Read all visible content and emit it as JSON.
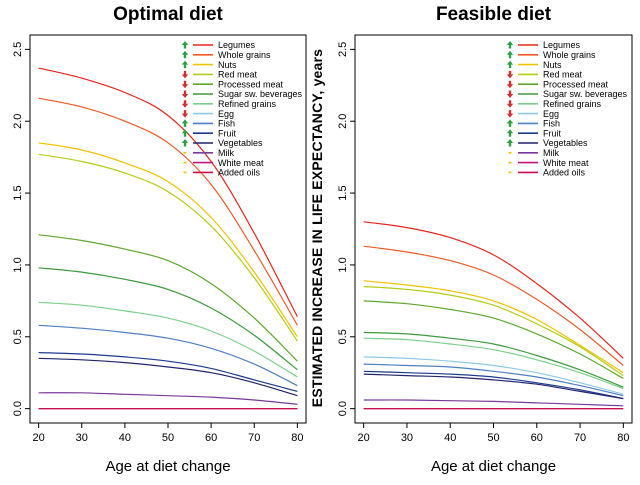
{
  "figure": {
    "shared_ylabel": "ESTIMATED INCREASE IN LIFE EXPECTANCY, years"
  },
  "chart_data": [
    {
      "type": "line",
      "title": "Optimal diet",
      "xlabel": "Age at diet change",
      "ylabel": "",
      "xlim": [
        18,
        82
      ],
      "ylim": [
        -0.1,
        2.6
      ],
      "x": [
        20,
        30,
        40,
        50,
        60,
        70,
        80
      ],
      "xticks": [
        20,
        30,
        40,
        50,
        60,
        70,
        80
      ],
      "yticks": [
        0.0,
        0.5,
        1.0,
        1.5,
        2.0,
        2.5
      ],
      "ytick_labels": [
        "0.0",
        "0.5",
        "1.0",
        "1.5",
        "2.0",
        "2.5"
      ],
      "series": [
        {
          "name": "Legumes",
          "color": "#e8251d",
          "arrow": "up",
          "arrow_color": "#2ea043",
          "values": [
            2.37,
            2.3,
            2.2,
            2.04,
            1.72,
            1.22,
            0.64
          ]
        },
        {
          "name": "Whole grains",
          "color": "#f05a28",
          "arrow": "up",
          "arrow_color": "#2ea043",
          "values": [
            2.16,
            2.1,
            2.0,
            1.85,
            1.56,
            1.1,
            0.58
          ]
        },
        {
          "name": "Nuts",
          "color": "#f2c200",
          "arrow": "up",
          "arrow_color": "#2ea043",
          "values": [
            1.85,
            1.8,
            1.71,
            1.58,
            1.33,
            0.95,
            0.5
          ]
        },
        {
          "name": "Red meat",
          "color": "#b5cc18",
          "arrow": "down",
          "arrow_color": "#d32f2f",
          "values": [
            1.77,
            1.72,
            1.64,
            1.51,
            1.27,
            0.91,
            0.47
          ]
        },
        {
          "name": "Processed meat",
          "color": "#5fa82d",
          "arrow": "down",
          "arrow_color": "#d32f2f",
          "values": [
            1.21,
            1.17,
            1.11,
            1.03,
            0.87,
            0.63,
            0.33
          ]
        },
        {
          "name": "Sugar  sw. beverages",
          "color": "#3d9a3d",
          "arrow": "down",
          "arrow_color": "#d32f2f",
          "values": [
            0.98,
            0.95,
            0.9,
            0.83,
            0.7,
            0.51,
            0.27
          ]
        },
        {
          "name": "Refined grains",
          "color": "#7ccf8a",
          "arrow": "down",
          "arrow_color": "#d32f2f",
          "values": [
            0.74,
            0.72,
            0.68,
            0.63,
            0.54,
            0.4,
            0.22
          ]
        },
        {
          "name": "Egg",
          "color": "#8ec9e6",
          "arrow": "down",
          "arrow_color": "#d32f2f",
          "values": [
            0.0,
            0.0,
            0.0,
            0.0,
            0.0,
            0.0,
            0.0
          ]
        },
        {
          "name": "Fish",
          "color": "#4f7fc4",
          "arrow": "up",
          "arrow_color": "#2ea043",
          "values": [
            0.58,
            0.56,
            0.53,
            0.49,
            0.42,
            0.31,
            0.16
          ]
        },
        {
          "name": "Fruit",
          "color": "#1c3a8f",
          "arrow": "up",
          "arrow_color": "#2ea043",
          "values": [
            0.39,
            0.38,
            0.36,
            0.33,
            0.28,
            0.2,
            0.12
          ]
        },
        {
          "name": "Vegetables",
          "color": "#22246e",
          "arrow": "up",
          "arrow_color": "#2ea043",
          "values": [
            0.35,
            0.34,
            0.32,
            0.29,
            0.25,
            0.18,
            0.09
          ]
        },
        {
          "name": "Milk",
          "color": "#7a3a9a",
          "arrow": "none",
          "arrow_color": "#f2c200",
          "values": [
            0.11,
            0.11,
            0.1,
            0.09,
            0.08,
            0.06,
            0.03
          ]
        },
        {
          "name": "White meat",
          "color": "#c0157f",
          "arrow": "none",
          "arrow_color": "#f2c200",
          "values": [
            0.0,
            0.0,
            0.0,
            0.0,
            0.0,
            0.0,
            0.0
          ]
        },
        {
          "name": "Added oils",
          "color": "#c8104a",
          "arrow": "none",
          "arrow_color": "#f2c200",
          "values": [
            0.0,
            0.0,
            0.0,
            0.0,
            0.0,
            0.0,
            0.0
          ]
        }
      ],
      "grid": false,
      "legend_placement": "top-right"
    },
    {
      "type": "line",
      "title": "Feasible diet",
      "xlabel": "Age at diet change",
      "ylabel": "",
      "xlim": [
        18,
        82
      ],
      "ylim": [
        -0.1,
        2.6
      ],
      "x": [
        20,
        30,
        40,
        50,
        60,
        70,
        80
      ],
      "xticks": [
        20,
        30,
        40,
        50,
        60,
        70,
        80
      ],
      "yticks": [
        0.0,
        0.5,
        1.0,
        1.5,
        2.0,
        2.5
      ],
      "ytick_labels": [
        "0.0",
        "0.5",
        "1.0",
        "1.5",
        "2.0",
        "2.5"
      ],
      "series": [
        {
          "name": "Legumes",
          "color": "#e8251d",
          "arrow": "up",
          "arrow_color": "#2ea043",
          "values": [
            1.3,
            1.26,
            1.19,
            1.07,
            0.87,
            0.63,
            0.35
          ]
        },
        {
          "name": "Whole grains",
          "color": "#f05a28",
          "arrow": "up",
          "arrow_color": "#2ea043",
          "values": [
            1.13,
            1.09,
            1.03,
            0.93,
            0.76,
            0.55,
            0.3
          ]
        },
        {
          "name": "Nuts",
          "color": "#f2c200",
          "arrow": "up",
          "arrow_color": "#2ea043",
          "values": [
            0.89,
            0.86,
            0.82,
            0.75,
            0.62,
            0.44,
            0.25
          ]
        },
        {
          "name": "Red meat",
          "color": "#b5cc18",
          "arrow": "down",
          "arrow_color": "#d32f2f",
          "values": [
            0.85,
            0.83,
            0.79,
            0.72,
            0.59,
            0.43,
            0.23
          ]
        },
        {
          "name": "Processed meat",
          "color": "#5fa82d",
          "arrow": "down",
          "arrow_color": "#d32f2f",
          "values": [
            0.75,
            0.73,
            0.69,
            0.63,
            0.52,
            0.38,
            0.21
          ]
        },
        {
          "name": "Sugar  sw. beverages",
          "color": "#3d9a3d",
          "arrow": "down",
          "arrow_color": "#d32f2f",
          "values": [
            0.53,
            0.52,
            0.49,
            0.45,
            0.37,
            0.27,
            0.15
          ]
        },
        {
          "name": "Refined grains",
          "color": "#7ccf8a",
          "arrow": "down",
          "arrow_color": "#d32f2f",
          "values": [
            0.49,
            0.48,
            0.45,
            0.41,
            0.34,
            0.25,
            0.14
          ]
        },
        {
          "name": "Egg",
          "color": "#8ec9e6",
          "arrow": "down",
          "arrow_color": "#d32f2f",
          "values": [
            0.36,
            0.35,
            0.33,
            0.3,
            0.25,
            0.18,
            0.1
          ]
        },
        {
          "name": "Fish",
          "color": "#4f7fc4",
          "arrow": "up",
          "arrow_color": "#2ea043",
          "values": [
            0.31,
            0.3,
            0.29,
            0.26,
            0.22,
            0.16,
            0.09
          ]
        },
        {
          "name": "Fruit",
          "color": "#1c3a8f",
          "arrow": "up",
          "arrow_color": "#2ea043",
          "values": [
            0.26,
            0.25,
            0.24,
            0.22,
            0.18,
            0.13,
            0.07
          ]
        },
        {
          "name": "Vegetables",
          "color": "#22246e",
          "arrow": "up",
          "arrow_color": "#2ea043",
          "values": [
            0.24,
            0.23,
            0.22,
            0.2,
            0.17,
            0.12,
            0.07
          ]
        },
        {
          "name": "Milk",
          "color": "#7a3a9a",
          "arrow": "none",
          "arrow_color": "#f2c200",
          "values": [
            0.06,
            0.06,
            0.055,
            0.05,
            0.04,
            0.03,
            0.02
          ]
        },
        {
          "name": "White meat",
          "color": "#c0157f",
          "arrow": "none",
          "arrow_color": "#f2c200",
          "values": [
            0.0,
            0.0,
            0.0,
            0.0,
            0.0,
            0.0,
            0.0
          ]
        },
        {
          "name": "Added oils",
          "color": "#c8104a",
          "arrow": "none",
          "arrow_color": "#f2c200",
          "values": [
            0.0,
            0.0,
            0.0,
            0.0,
            0.0,
            0.0,
            0.0
          ]
        }
      ],
      "grid": false,
      "legend_placement": "top-right"
    }
  ]
}
